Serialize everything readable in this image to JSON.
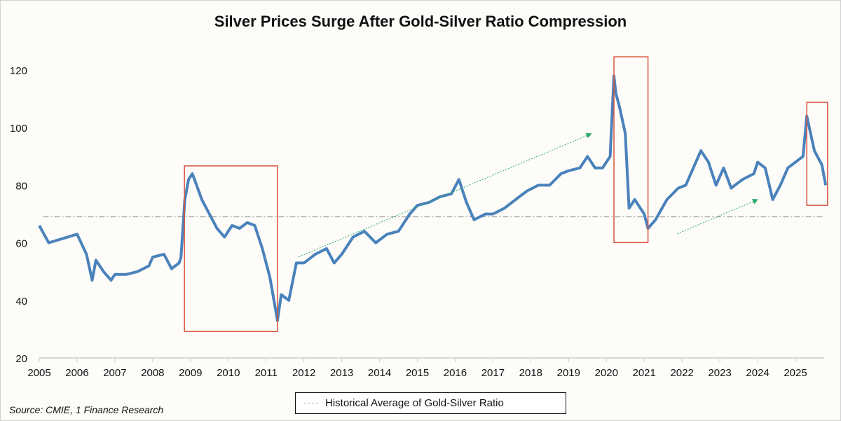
{
  "chart_data": {
    "type": "line",
    "title": "Silver Prices Surge After Gold-Silver Ratio Compression",
    "xlabel": "",
    "ylabel": "",
    "xlim": [
      2005,
      2025.85
    ],
    "ylim": [
      20,
      125
    ],
    "yticks": [
      20,
      40,
      60,
      80,
      100,
      120
    ],
    "xticks": [
      2005,
      2006,
      2007,
      2008,
      2009,
      2010,
      2011,
      2012,
      2013,
      2014,
      2015,
      2016,
      2017,
      2018,
      2019,
      2020,
      2021,
      2022,
      2023,
      2024,
      2025
    ],
    "grid": false,
    "series_color": "#4a82bb",
    "series": [
      {
        "x": [
          2005.0,
          2005.25,
          2005.5,
          2005.75,
          2006.0,
          2006.25,
          2006.4,
          2006.5,
          2006.7,
          2006.9,
          2007.0,
          2007.3,
          2007.6,
          2007.9,
          2008.0,
          2008.3,
          2008.5,
          2008.7,
          2008.75,
          2008.85,
          2008.95,
          2009.05,
          2009.3,
          2009.5,
          2009.7,
          2009.9,
          2010.1,
          2010.3,
          2010.5,
          2010.7,
          2010.9,
          2011.1,
          2011.3,
          2011.4,
          2011.6,
          2011.8,
          2012.0,
          2012.3,
          2012.6,
          2012.8,
          2013.0,
          2013.3,
          2013.6,
          2013.9,
          2014.2,
          2014.5,
          2014.8,
          2015.0,
          2015.3,
          2015.6,
          2015.9,
          2016.1,
          2016.3,
          2016.5,
          2016.8,
          2017.0,
          2017.3,
          2017.6,
          2017.9,
          2018.2,
          2018.5,
          2018.8,
          2019.0,
          2019.3,
          2019.5,
          2019.7,
          2019.9,
          2020.1,
          2020.2,
          2020.25,
          2020.35,
          2020.5,
          2020.6,
          2020.75,
          2020.9,
          2021.0,
          2021.1,
          2021.3,
          2021.6,
          2021.9,
          2022.1,
          2022.3,
          2022.5,
          2022.7,
          2022.9,
          2023.1,
          2023.3,
          2023.6,
          2023.9,
          2024.0,
          2024.2,
          2024.4,
          2024.6,
          2024.8,
          2025.0,
          2025.2,
          2025.3,
          2025.5,
          2025.7,
          2025.8
        ],
        "values": [
          66,
          60,
          61,
          62,
          63,
          56,
          47,
          54,
          50,
          47,
          49,
          49,
          50,
          52,
          55,
          56,
          51,
          53,
          55,
          75,
          82,
          84,
          75,
          70,
          65,
          62,
          66,
          65,
          67,
          66,
          58,
          48,
          33,
          42,
          40,
          53,
          53,
          56,
          58,
          53,
          56,
          62,
          64,
          60,
          63,
          64,
          70,
          73,
          74,
          76,
          77,
          82,
          74,
          68,
          70,
          70,
          72,
          75,
          78,
          80,
          80,
          84,
          85,
          86,
          90,
          86,
          86,
          90,
          118,
          112,
          107,
          98,
          72,
          75,
          72,
          70,
          65,
          68,
          75,
          79,
          80,
          86,
          92,
          88,
          80,
          86,
          79,
          82,
          84,
          88,
          86,
          75,
          80,
          86,
          88,
          90,
          104,
          92,
          87,
          80
        ]
      }
    ],
    "reference_line": {
      "value": 69,
      "style": "dash-dot",
      "color": "#888888",
      "label": "Historical Average of Gold-Silver Ratio"
    },
    "highlight_boxes": [
      {
        "x": [
          2008.84,
          2011.3
        ],
        "y": [
          29.2,
          86.7
        ]
      },
      {
        "x": [
          2020.2,
          2021.1
        ],
        "y": [
          60.1,
          124.6
        ]
      },
      {
        "x": [
          2025.3,
          2025.85
        ],
        "y": [
          73,
          108.8
        ]
      }
    ],
    "highlight_color": "#d9553a",
    "arrows": [
      {
        "from": [
          2011.86,
          55.1
        ],
        "to": [
          2019.6,
          97.9
        ]
      },
      {
        "from": [
          2021.87,
          63.1
        ],
        "to": [
          2024.0,
          75
        ]
      }
    ],
    "arrow_color": "#2aa86b",
    "legend": {
      "entries": [
        "Historical Average of Gold-Silver Ratio"
      ],
      "placement": "bottom"
    },
    "source": "Source: CMIE, 1 Finance Research"
  }
}
